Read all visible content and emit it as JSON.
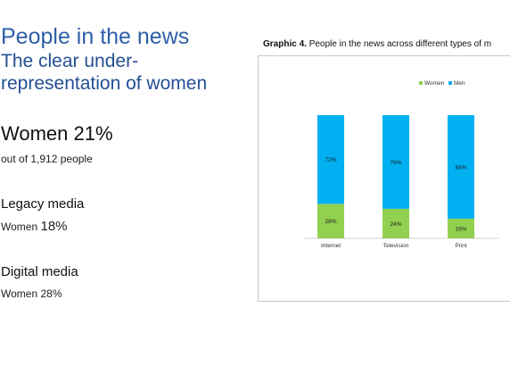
{
  "left": {
    "title": "People in the news",
    "subtitle": "The clear under-representation of women",
    "headline": "Women 21%",
    "headline_sub": "out of 1,912 people",
    "legacy": {
      "heading": "Legacy media",
      "label": "Women",
      "value": "18%"
    },
    "digital": {
      "heading": "Digital media",
      "label": "Women",
      "value": "28%"
    }
  },
  "graphic": {
    "label": "Graphic 4.",
    "caption": "People in the news across different types of m"
  },
  "chart_data": {
    "type": "bar",
    "stacked": true,
    "categories": [
      "Internet",
      "Television",
      "Print"
    ],
    "series": [
      {
        "name": "Women",
        "values": [
          28,
          24,
          16
        ],
        "labels": [
          "28%",
          "24%",
          "16%"
        ],
        "color": "#92d050"
      },
      {
        "name": "Men",
        "values": [
          72,
          76,
          84
        ],
        "labels": [
          "72%",
          "76%",
          "84%"
        ],
        "color": "#00b0f0"
      }
    ],
    "ylim": [
      0,
      100
    ],
    "legend_position": "top-right",
    "grid": false
  }
}
